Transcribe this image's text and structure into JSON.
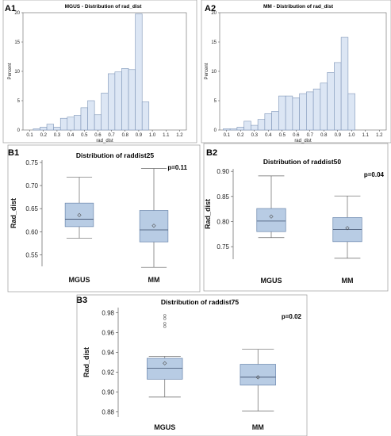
{
  "panels": {
    "A1": "A1",
    "A2": "A2",
    "B1": "B1",
    "B2": "B2",
    "B3": "B3"
  },
  "chart_data": [
    {
      "id": "A1",
      "type": "bar",
      "title": "MGUS - Distribution of rad_dist",
      "xlabel": "rad_dist",
      "ylabel": "Percent",
      "xlim": [
        0.05,
        1.25
      ],
      "ylim": [
        0,
        20
      ],
      "xticks": [
        "0.1",
        "0.2",
        "0.3",
        "0.4",
        "0.5",
        "0.6",
        "0.7",
        "0.8",
        "0.9",
        "1.0",
        "1.1",
        "1.2"
      ],
      "yticks": [
        0,
        5,
        10,
        15,
        20
      ],
      "bin_width": 0.05,
      "bins": [
        0.15,
        0.2,
        0.25,
        0.3,
        0.35,
        0.4,
        0.45,
        0.5,
        0.55,
        0.6,
        0.65,
        0.7,
        0.75,
        0.8,
        0.85,
        0.9,
        0.95,
        1.0
      ],
      "values": [
        0.2,
        0.5,
        1.0,
        0.5,
        2.0,
        2.2,
        2.5,
        3.8,
        5.0,
        2.6,
        6.3,
        9.6,
        9.9,
        10.5,
        10.3,
        19.8,
        4.8,
        0
      ]
    },
    {
      "id": "A2",
      "type": "bar",
      "title": "MM - Distribution of rad_dist",
      "xlabel": "rad_dist",
      "ylabel": "Percent",
      "xlim": [
        0.05,
        1.25
      ],
      "ylim": [
        0,
        20
      ],
      "xticks": [
        "0.1",
        "0.2",
        "0.3",
        "0.4",
        "0.5",
        "0.6",
        "0.7",
        "0.8",
        "0.9",
        "1.0",
        "1.1",
        "1.2"
      ],
      "yticks": [
        0,
        5,
        10,
        15,
        20
      ],
      "bin_width": 0.05,
      "bins": [
        0.1,
        0.15,
        0.2,
        0.25,
        0.3,
        0.35,
        0.4,
        0.45,
        0.5,
        0.55,
        0.6,
        0.65,
        0.7,
        0.75,
        0.8,
        0.85,
        0.9,
        0.95,
        1.0
      ],
      "values": [
        0.2,
        0.2,
        0.5,
        1.5,
        0.8,
        1.8,
        2.8,
        3.2,
        5.8,
        5.8,
        5.5,
        6.2,
        6.5,
        7.0,
        8.0,
        9.8,
        11.5,
        15.8,
        6.2
      ]
    },
    {
      "id": "B1",
      "type": "box",
      "title": "Distribution of raddist25",
      "ylabel": "Rad_dist",
      "annotation": "p=0.11",
      "ylim": [
        0.525,
        0.755
      ],
      "yticks": [
        "0.55",
        "0.60",
        "0.65",
        "0.70",
        "0.75"
      ],
      "categories": [
        "MGUS",
        "MM"
      ],
      "boxes": [
        {
          "min": 0.586,
          "q1": 0.611,
          "median": 0.627,
          "q3": 0.662,
          "max": 0.718,
          "mean": 0.636,
          "outliers": []
        },
        {
          "min": 0.523,
          "q1": 0.578,
          "median": 0.604,
          "q3": 0.646,
          "max": 0.737,
          "mean": 0.613,
          "outliers": []
        }
      ]
    },
    {
      "id": "B2",
      "type": "box",
      "title": "Distribution of raddist50",
      "ylabel": "Rad_dist",
      "annotation": "p=0.04",
      "ylim": [
        0.725,
        0.905
      ],
      "yticks": [
        "0.75",
        "0.80",
        "0.85",
        "0.90"
      ],
      "categories": [
        "MGUS",
        "MM"
      ],
      "boxes": [
        {
          "min": 0.768,
          "q1": 0.78,
          "median": 0.801,
          "q3": 0.826,
          "max": 0.891,
          "mean": 0.81,
          "outliers": []
        },
        {
          "min": 0.727,
          "q1": 0.76,
          "median": 0.784,
          "q3": 0.808,
          "max": 0.851,
          "mean": 0.787,
          "outliers": []
        }
      ]
    },
    {
      "id": "B3",
      "type": "box",
      "title": "Distribution of raddist75",
      "ylabel": "Rad_dist",
      "annotation": "p=0.02",
      "ylim": [
        0.875,
        0.985
      ],
      "yticks": [
        "0.88",
        "0.90",
        "0.92",
        "0.94",
        "0.96",
        "0.98"
      ],
      "categories": [
        "MGUS",
        "MM"
      ],
      "boxes": [
        {
          "min": 0.895,
          "q1": 0.913,
          "median": 0.924,
          "q3": 0.934,
          "max": 0.936,
          "mean": 0.929,
          "outliers": [
            0.966,
            0.969,
            0.974,
            0.977
          ]
        },
        {
          "min": 0.881,
          "q1": 0.907,
          "median": 0.915,
          "q3": 0.928,
          "max": 0.943,
          "mean": 0.915,
          "outliers": []
        }
      ]
    }
  ]
}
